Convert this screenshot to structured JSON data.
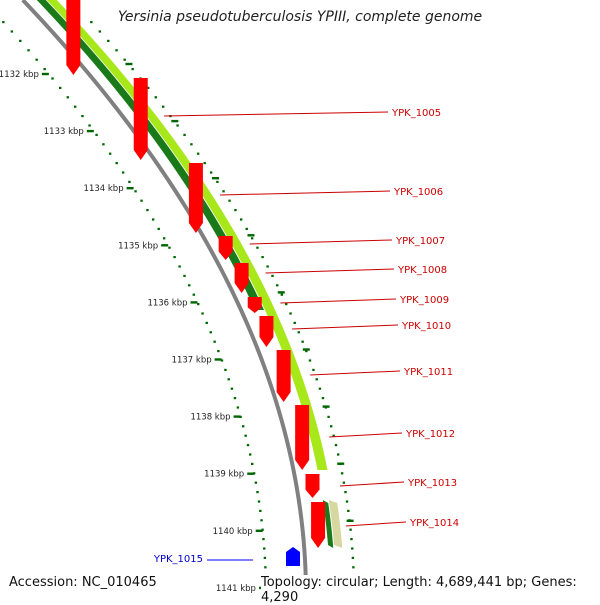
{
  "title": "Yersinia pseudotuberculosis YPIII, complete genome",
  "footer": {
    "accession": "Accession: NC_010465",
    "summary": "Topology: circular; Length: 4,689,441 bp; Genes: 4,290"
  },
  "scale": {
    "unit": "kbp",
    "ticks": [
      "1132 kbp",
      "1133 kbp",
      "1134 kbp",
      "1135 kbp",
      "1136 kbp",
      "1137 kbp",
      "1138 kbp",
      "1139 kbp",
      "1140 kbp",
      "1141 kbp"
    ]
  },
  "genes": {
    "forward": [
      "YPK_1005",
      "YPK_1006",
      "YPK_1007",
      "YPK_1008",
      "YPK_1009",
      "YPK_1010",
      "YPK_1011",
      "YPK_1012",
      "YPK_1013",
      "YPK_1014"
    ],
    "reverse": [
      "YPK_1015"
    ]
  },
  "colors": {
    "forward_gene": "#ff0000",
    "forward_label": "#cc0000",
    "reverse_gene": "#0000ff",
    "reverse_label": "#0000cc",
    "tick": "#006600",
    "backbone": "#808080",
    "track_dark": "#1a7a1a",
    "track_light": "#a8e81a"
  }
}
